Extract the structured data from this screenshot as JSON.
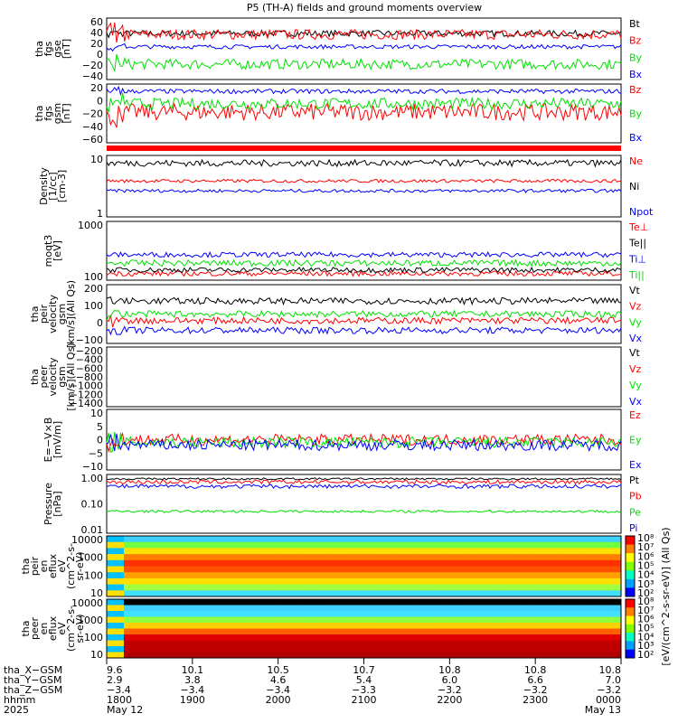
{
  "title": "P5 (TH-A) fields and ground moments overview",
  "colors": {
    "black": "#000000",
    "red": "#ff0000",
    "green": "#00e000",
    "blue": "#0000ff"
  },
  "chart_data": [
    {
      "type": "line",
      "ylabel": [
        "tha",
        "fgs",
        "gse",
        "[nT]"
      ],
      "yticks": [
        "60",
        "40",
        "20",
        "0",
        "−20",
        "−40"
      ],
      "ylim": [
        -50,
        70
      ],
      "series": [
        {
          "name": "Bt",
          "color": "black",
          "level": 40,
          "noise": 6
        },
        {
          "name": "Bz",
          "color": "red",
          "level": 38,
          "noise": 10
        },
        {
          "name": "By",
          "color": "green",
          "level": -20,
          "noise": 10
        },
        {
          "name": "Bx",
          "color": "blue",
          "level": 14,
          "noise": 4
        }
      ]
    },
    {
      "type": "line",
      "ylabel": [
        "tha",
        "fgs",
        "gsm",
        "[nT]"
      ],
      "yticks": [
        "20",
        "0",
        "−20",
        "−40",
        "−60"
      ],
      "ylim": [
        -80,
        25
      ],
      "series": [
        {
          "name": "Bz",
          "color": "red",
          "level": -25,
          "noise": 15
        },
        {
          "name": "By",
          "color": "green",
          "level": -10,
          "noise": 10
        },
        {
          "name": "Bx",
          "color": "blue",
          "level": 12,
          "noise": 4
        }
      ]
    },
    {
      "type": "line",
      "ylabel": [
        "Density",
        "[1/cc]",
        "[cm-3]"
      ],
      "yticks": [
        "10",
        "1"
      ],
      "scale": "log",
      "ylim": [
        0.8,
        60
      ],
      "series": [
        {
          "name": "Ne",
          "color": "red",
          "level": 10,
          "noise": 0.05
        },
        {
          "name": "Ni",
          "color": "black",
          "level": 35,
          "noise": 0.1
        },
        {
          "name": "Npot",
          "color": "blue",
          "level": 5,
          "noise": 0.05
        }
      ]
    },
    {
      "type": "line",
      "ylabel": [
        "moqt3",
        "[eV]"
      ],
      "yticks": [
        "1000",
        "100"
      ],
      "scale": "log",
      "ylim": [
        40,
        3000
      ],
      "series": [
        {
          "name": "Te⊥",
          "color": "red",
          "level": 65,
          "noise": 0.08
        },
        {
          "name": "Te||",
          "color": "black",
          "level": 85,
          "noise": 0.08
        },
        {
          "name": "Ti⊥",
          "color": "blue",
          "level": 260,
          "noise": 0.08
        },
        {
          "name": "Ti||",
          "color": "green",
          "level": 140,
          "noise": 0.1
        }
      ]
    },
    {
      "type": "line",
      "ylabel": [
        "tha",
        "peir",
        "velocity",
        "gsm",
        "[km/s](All Qs)"
      ],
      "yticks": [
        "200",
        "100",
        "0",
        "−100"
      ],
      "ylim": [
        -140,
        220
      ],
      "series": [
        {
          "name": "Vt",
          "color": "black",
          "level": 120,
          "noise": 20
        },
        {
          "name": "Vz",
          "color": "red",
          "level": 0,
          "noise": 20
        },
        {
          "name": "Vy",
          "color": "green",
          "level": 40,
          "noise": 20
        },
        {
          "name": "Vx",
          "color": "blue",
          "level": -60,
          "noise": 20
        }
      ]
    },
    {
      "type": "line",
      "ylabel": [
        "tha",
        "peer",
        "velocity",
        "gsm",
        "[km/s](All Qs)"
      ],
      "yticks": [
        "−200",
        "−400",
        "−600",
        "−800",
        "−1000",
        "−1200",
        "−1400"
      ],
      "ylim": [
        -1500,
        -100
      ],
      "series": [
        {
          "name": "Vt",
          "color": "black"
        },
        {
          "name": "Vz",
          "color": "red"
        },
        {
          "name": "Vy",
          "color": "green"
        },
        {
          "name": "Vx",
          "color": "blue"
        }
      ]
    },
    {
      "type": "line",
      "ylabel": [
        "E=−V×B",
        "[mV/m]"
      ],
      "yticks": [
        "10",
        "5",
        "0",
        "−5",
        "−10"
      ],
      "ylim": [
        -11,
        11
      ],
      "series": [
        {
          "name": "Ez",
          "color": "red",
          "level": 0,
          "noise": 2
        },
        {
          "name": "Ey",
          "color": "green",
          "level": -1,
          "noise": 2
        },
        {
          "name": "Ex",
          "color": "blue",
          "level": -2,
          "noise": 2
        }
      ]
    },
    {
      "type": "line",
      "ylabel": [
        "Pressure",
        "[nPa]"
      ],
      "yticks": [
        "1.00",
        "0.10",
        "0.01"
      ],
      "scale": "log",
      "ylim": [
        0.008,
        1.8
      ],
      "series": [
        {
          "name": "Pt",
          "color": "black",
          "level": 1.2,
          "noise": 0.04
        },
        {
          "name": "Pb",
          "color": "red",
          "level": 0.9,
          "noise": 0.08
        },
        {
          "name": "Pe",
          "color": "green",
          "level": 0.06,
          "noise": 0.05
        },
        {
          "name": "Pi",
          "color": "blue",
          "level": 0.6,
          "noise": 0.08
        }
      ]
    },
    {
      "type": "heatmap",
      "ylabel": [
        "tha",
        "peir",
        "en",
        "eflux",
        "eV",
        "(cm^2-s-",
        "sr-eV)"
      ],
      "yticks": [
        "10000",
        "1000",
        "100",
        "10"
      ],
      "scale": "log"
    },
    {
      "type": "heatmap",
      "ylabel": [
        "tha",
        "peer",
        "en",
        "eflux",
        "eV",
        "(cm^2-s-",
        "sr-eV)"
      ],
      "yticks": [
        "10000",
        "1000",
        "100",
        "10"
      ],
      "scale": "log"
    }
  ],
  "colorbar": {
    "ticks": [
      "10⁸",
      "10⁷",
      "10⁶",
      "10⁵",
      "10⁴",
      "10³",
      "10²"
    ],
    "label": "[eV/(cm^2-s-sr-eV)] (All Qs)"
  },
  "xaxis": {
    "row_labels": [
      "tha_X−GSM",
      "tha_Y−GSM",
      "tha_Z−GSM",
      "hhmm",
      "2025"
    ],
    "ticks": [
      {
        "x": "9.6",
        "y": "2.9",
        "z": "−3.4",
        "time": "1800",
        "date": "May 12"
      },
      {
        "x": "10.1",
        "y": "3.8",
        "z": "−3.4",
        "time": "1900",
        "date": ""
      },
      {
        "x": "10.5",
        "y": "4.6",
        "z": "−3.4",
        "time": "2000",
        "date": ""
      },
      {
        "x": "10.7",
        "y": "5.4",
        "z": "−3.3",
        "time": "2100",
        "date": ""
      },
      {
        "x": "10.8",
        "y": "6.0",
        "z": "−3.2",
        "time": "2200",
        "date": ""
      },
      {
        "x": "10.8",
        "y": "6.6",
        "z": "−3.2",
        "time": "2300",
        "date": ""
      },
      {
        "x": "10.8",
        "y": "7.0",
        "z": "−3.2",
        "time": "0000",
        "date": "May 13"
      }
    ]
  }
}
